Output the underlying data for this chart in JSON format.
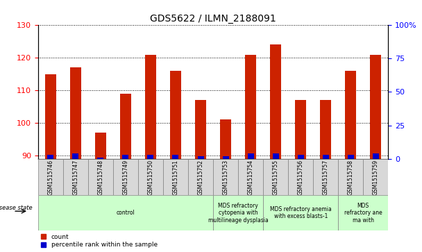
{
  "title": "GDS5622 / ILMN_2188091",
  "samples": [
    "GSM1515746",
    "GSM1515747",
    "GSM1515748",
    "GSM1515749",
    "GSM1515750",
    "GSM1515751",
    "GSM1515752",
    "GSM1515753",
    "GSM1515754",
    "GSM1515755",
    "GSM1515756",
    "GSM1515757",
    "GSM1515758",
    "GSM1515759"
  ],
  "count_values": [
    115,
    117,
    97,
    109,
    121,
    116,
    107,
    101,
    121,
    124,
    107,
    107,
    116,
    121
  ],
  "percentile_values": [
    3,
    4,
    1,
    3,
    3,
    3,
    2,
    2,
    4,
    4,
    3,
    3,
    3,
    4
  ],
  "ymin": 89,
  "ymax": 130,
  "y_left_ticks": [
    90,
    100,
    110,
    120,
    130
  ],
  "y_right_ticks": [
    0,
    25,
    50,
    75,
    100
  ],
  "bar_color": "#cc2200",
  "percentile_color": "#0000cc",
  "background_color": "#ffffff",
  "plot_bg_color": "#ffffff",
  "disease_groups": [
    {
      "label": "control",
      "start": 0,
      "end": 7,
      "color": "#ccffcc"
    },
    {
      "label": "MDS refractory\ncytopenia with\nmultilineage dysplasia",
      "start": 7,
      "end": 9,
      "color": "#ccffcc"
    },
    {
      "label": "MDS refractory anemia\nwith excess blasts-1",
      "start": 9,
      "end": 12,
      "color": "#ccffcc"
    },
    {
      "label": "MDS\nrefractory ane\nma with",
      "start": 12,
      "end": 14,
      "color": "#ccffcc"
    }
  ],
  "disease_state_label": "disease state",
  "bar_width": 0.45,
  "percentile_bar_width": 0.25
}
